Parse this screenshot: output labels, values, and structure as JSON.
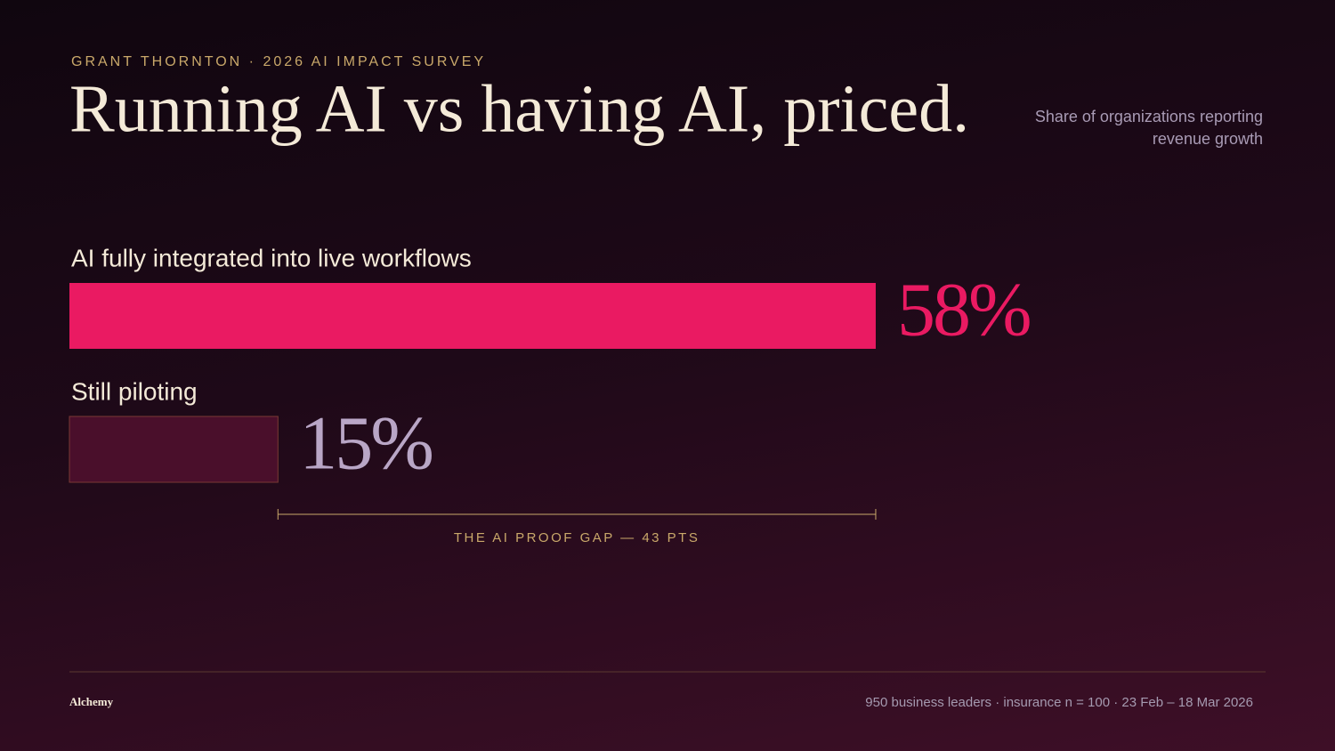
{
  "chart_data": {
    "type": "bar",
    "eyebrow": "GRANT THORNTON · 2026 AI IMPACT SURVEY",
    "title": "Running AI vs having AI, priced.",
    "subtitle": "Share of organizations reporting revenue growth",
    "categories": [
      "AI fully integrated into live workflows",
      "Still piloting"
    ],
    "values": [
      58,
      15
    ],
    "value_labels": [
      "58%",
      "15%"
    ],
    "colors": [
      "#ea1a62",
      "#4a0f2b"
    ],
    "annotation": "THE AI PROOF GAP — 43 PTS",
    "logo": "Alchemy",
    "source": "950 business leaders · insurance n = 100 · 23 Feb – 18 Mar 2026"
  }
}
